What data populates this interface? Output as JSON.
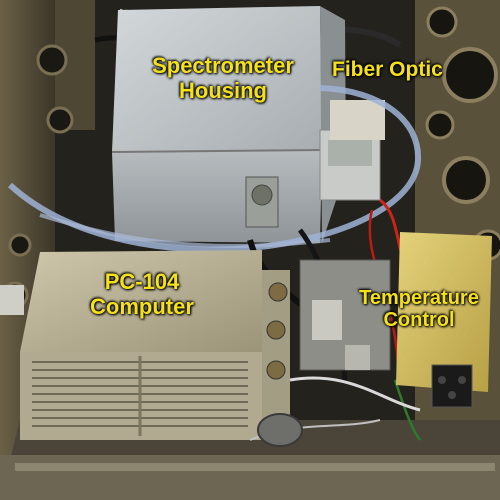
{
  "labels": {
    "spectrometer_line1": "Spectrometer",
    "spectrometer_line2": "Housing",
    "fiber_optic": "Fiber Optic",
    "computer_line1": "PC-104",
    "computer_line2": "Computer",
    "temperature_line1": "Temperature",
    "temperature_line2": "Control"
  },
  "colors": {
    "annotation_text": "#f4e11c",
    "housing_metal": "#b9bfc2",
    "computer_metal": "#bdb59a",
    "controller_box": "#d8c468",
    "fiber_cable": "#8fa3c8"
  }
}
